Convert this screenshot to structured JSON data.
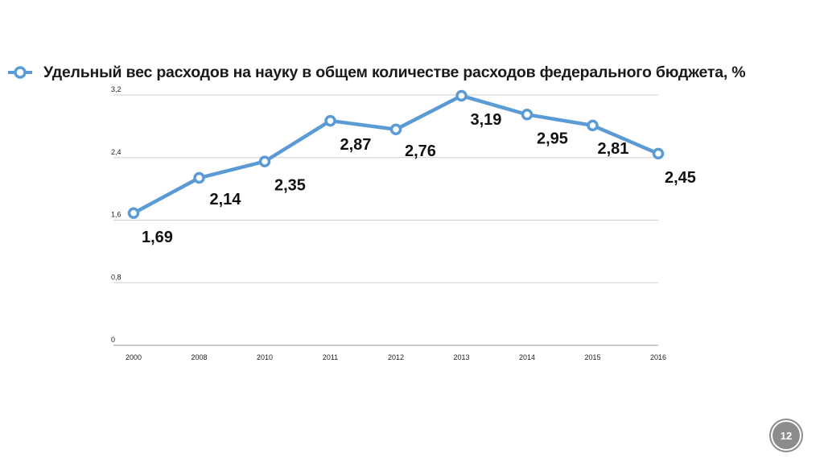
{
  "chart_data": {
    "type": "line",
    "categories": [
      "2000",
      "2008",
      "2010",
      "2011",
      "2012",
      "2013",
      "2014",
      "2015",
      "2016"
    ],
    "series": [
      {
        "name": "Удельный вес расходов на науку в общем количестве расходов федерального бюджета, %",
        "values": [
          1.69,
          2.14,
          2.35,
          2.87,
          2.76,
          3.19,
          2.95,
          2.81,
          2.45
        ],
        "labels": [
          "1,69",
          "2,14",
          "2,35",
          "2,87",
          "2,76",
          "3,19",
          "2,95",
          "2,81",
          "2,45"
        ],
        "color": "#5b9bd5"
      }
    ],
    "yticks": [
      "0",
      "0,8",
      "1,6",
      "2,4",
      "3,2"
    ],
    "ylim": [
      0,
      3.2
    ],
    "grid": true,
    "legend_position": "top-left"
  },
  "page_number": "12"
}
